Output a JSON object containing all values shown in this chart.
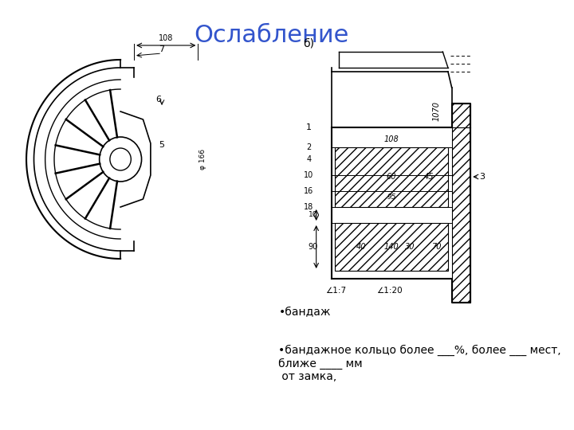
{
  "title": "Ослабление",
  "title_color": "#3355cc",
  "title_fontsize": 22,
  "bg_color": "#ffffff",
  "bullet_texts": [
    "бандаж",
    "бандажное кольцо более ___%, более ___ мест, ближе ____ мм\n от замка,"
  ],
  "label_b": "б)",
  "left_image_path": null,
  "right_image_path": null
}
